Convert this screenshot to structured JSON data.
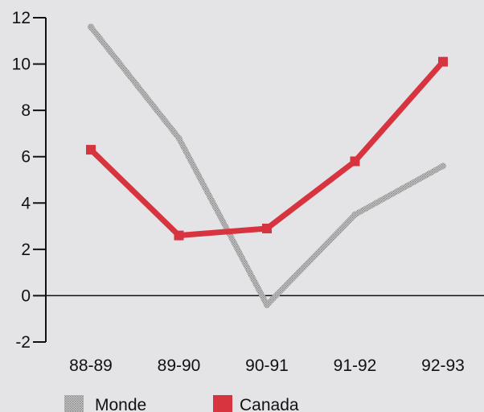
{
  "chart_data": {
    "type": "line",
    "categories": [
      "88-89",
      "89-90",
      "90-91",
      "91-92",
      "92-93"
    ],
    "series": [
      {
        "name": "Monde",
        "values": [
          11.6,
          6.8,
          -0.4,
          3.5,
          5.6
        ],
        "color": "#a8a8a8",
        "style": "dotted-gray"
      },
      {
        "name": "Canada",
        "values": [
          6.3,
          2.6,
          2.9,
          5.8,
          10.1
        ],
        "color": "#d8343f",
        "style": "solid-markers"
      }
    ],
    "yticks": [
      -2,
      0,
      2,
      4,
      6,
      8,
      10,
      12
    ],
    "ylim": [
      -2,
      12
    ],
    "title": "",
    "xlabel": "",
    "ylabel": "",
    "grid": false,
    "zero_line": true,
    "legend": {
      "position": "bottom-left"
    }
  }
}
